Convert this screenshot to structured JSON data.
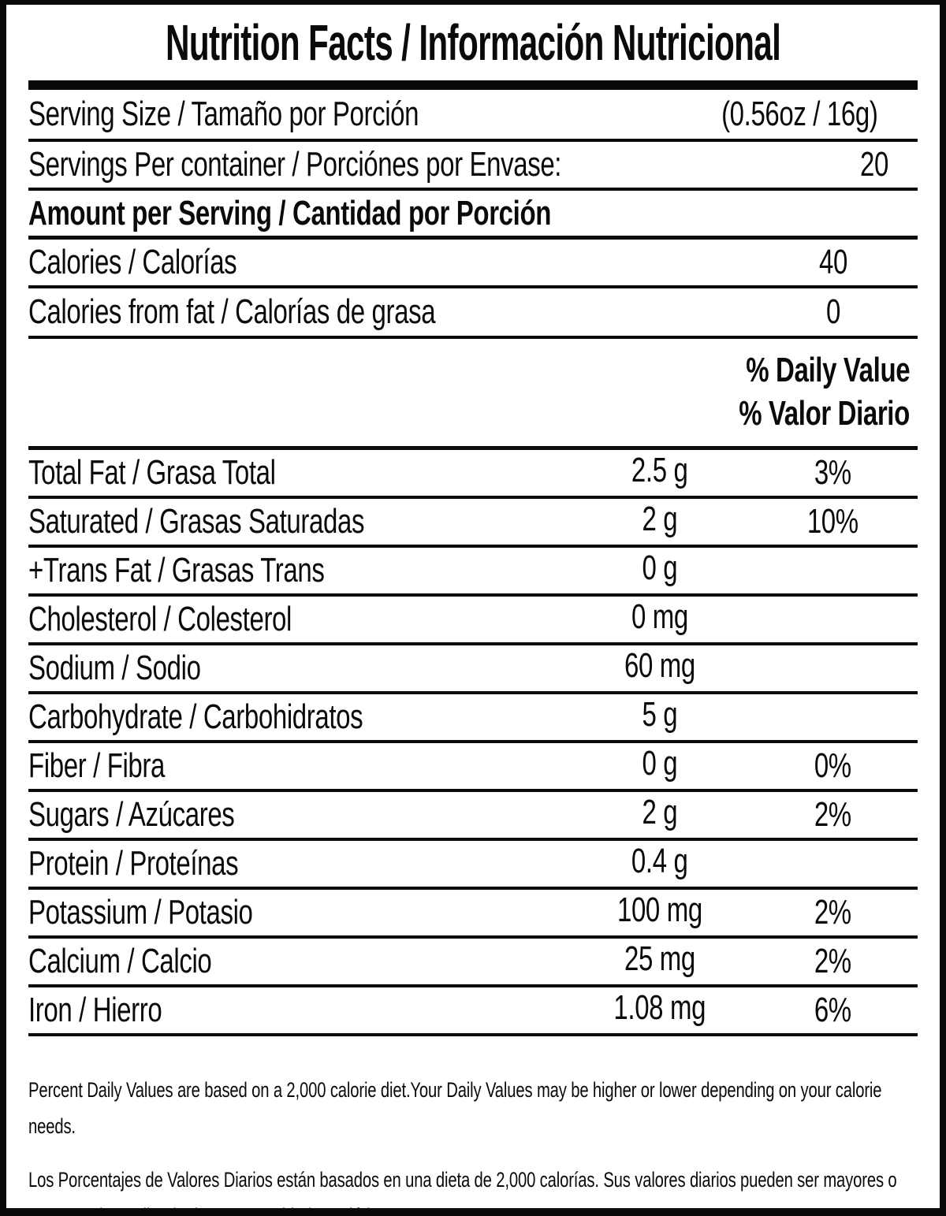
{
  "label": {
    "title": "Nutrition Facts / Información Nutricional",
    "serving_size": {
      "label": "Serving Size / Tamaño por Porción",
      "value": "(0.56oz / 16g)"
    },
    "servings_per_container": {
      "label": "Servings Per container / Porciónes por Envase:",
      "value": "20"
    },
    "amount_per_serving_header": "Amount per Serving / Cantidad por Porción",
    "calories": {
      "label": "Calories / Calorías",
      "value": "40"
    },
    "calories_from_fat": {
      "label": "Calories from fat / Calorías de grasa",
      "value": "0"
    },
    "daily_value_header": {
      "line1": "% Daily Value",
      "line2": "% Valor Diario"
    },
    "nutrients": [
      {
        "label": "Total Fat / Grasa Total",
        "amount": "2.5 g",
        "dv": "3%"
      },
      {
        "label": "Saturated / Grasas Saturadas",
        "amount": "2 g",
        "dv": "10%"
      },
      {
        "label": "+Trans Fat / Grasas Trans",
        "amount": "0 g",
        "dv": ""
      },
      {
        "label": "Cholesterol / Colesterol",
        "amount": "0 mg",
        "dv": ""
      },
      {
        "label": "Sodium / Sodio",
        "amount": "60 mg",
        "dv": ""
      },
      {
        "label": "Carbohydrate / Carbohidratos",
        "amount": "5 g",
        "dv": ""
      },
      {
        "label": "Fiber / Fibra",
        "amount": "0 g",
        "dv": "0%"
      },
      {
        "label": "Sugars / Azúcares",
        "amount": "2 g",
        "dv": "2%"
      },
      {
        "label": "Protein / Proteínas",
        "amount": "0.4 g",
        "dv": ""
      },
      {
        "label": "Potassium / Potasio",
        "amount": "100 mg",
        "dv": "2%"
      },
      {
        "label": "Calcium / Calcio",
        "amount": "25 mg",
        "dv": "2%"
      },
      {
        "label": "Iron / Hierro",
        "amount": "1.08 mg",
        "dv": "6%"
      }
    ],
    "footnotes": {
      "en": "Percent Daily Values are based on a 2,000 calorie diet.Your Daily Values may be higher or lower depending on your calorie needs.",
      "es": "Los Porcentajes de Valores Diarios están basados en una dieta de 2,000 calorías. Sus valores diarios pueden ser mayores o menores dependiendo de sus necesidades calóricas"
    },
    "colors": {
      "ink": "#0a0a0a",
      "background": "#ffffff"
    }
  }
}
